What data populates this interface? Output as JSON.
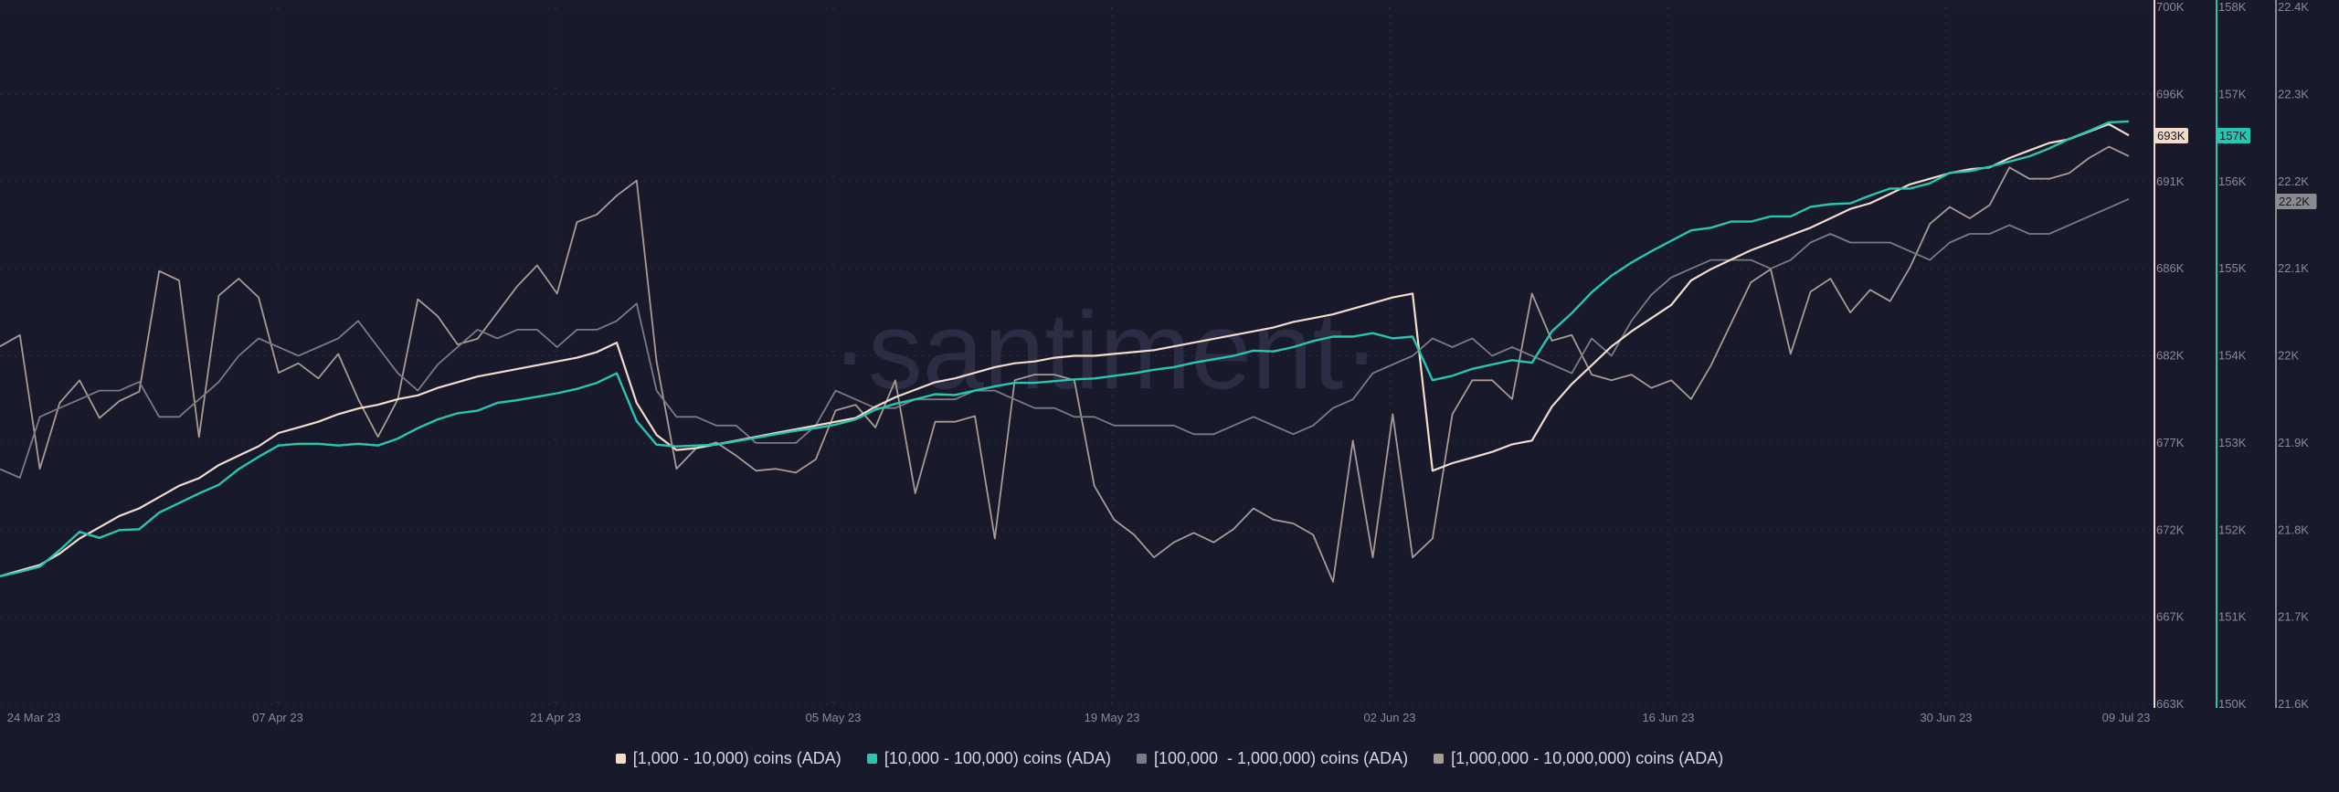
{
  "watermark": "·santiment·",
  "colors": {
    "background": "#181a2b",
    "s1": "#f4dccb",
    "s2": "#26c6b0",
    "s3": "#7b7b82",
    "s4": "#aa9a94"
  },
  "chart_data": {
    "type": "line",
    "grid": true,
    "legend_placement": "bottom-center",
    "x_labels": [
      "24 Mar 23",
      "07 Apr 23",
      "21 Apr 23",
      "05 May 23",
      "19 May 23",
      "02 Jun 23",
      "16 Jun 23",
      "30 Jun 23",
      "09 Jul 23"
    ],
    "axes": [
      {
        "id": "a1",
        "ticks": [
          "700K",
          "696K",
          "691K",
          "686K",
          "682K",
          "677K",
          "672K",
          "667K",
          "663K"
        ],
        "range": [
          663000,
          700000
        ],
        "badge": "693K",
        "badge_color": "#f4dccb"
      },
      {
        "id": "a2",
        "ticks": [
          "158K",
          "157K",
          "156K",
          "155K",
          "154K",
          "153K",
          "152K",
          "151K",
          "150K"
        ],
        "range": [
          150000,
          158000
        ],
        "badge": "157K",
        "badge_color": "#26c6b0"
      },
      {
        "id": "a3",
        "ticks": [
          "22.4K",
          "22.3K",
          "22.2K",
          "22.1K",
          "22K",
          "21.9K",
          "21.8K",
          "21.7K",
          "21.6K"
        ],
        "range": [
          21600,
          22400
        ],
        "badge": "22.2K",
        "badge_color": "#8a8a90"
      }
    ],
    "series": [
      {
        "name": "[1,000 - 10,000) coins (ADA)",
        "axis": "a1",
        "values": [
          669.8,
          670.1,
          670.4,
          671.0,
          671.8,
          672.4,
          673.0,
          673.4,
          674.0,
          674.6,
          675.0,
          675.7,
          676.2,
          676.7,
          677.4,
          677.7,
          678.0,
          678.4,
          678.7,
          678.9,
          679.2,
          679.4,
          679.8,
          680.1,
          680.4,
          680.6,
          680.8,
          681.0,
          681.2,
          681.4,
          681.7,
          682.2,
          679.0,
          677.3,
          676.5,
          676.6,
          676.8,
          677.0,
          677.2,
          677.4,
          677.6,
          677.8,
          678.0,
          678.2,
          678.8,
          679.3,
          679.7,
          680.1,
          680.3,
          680.6,
          680.9,
          681.1,
          681.2,
          681.4,
          681.5,
          681.5,
          681.6,
          681.7,
          681.8,
          682.0,
          682.2,
          682.4,
          682.6,
          682.8,
          683.0,
          683.3,
          683.5,
          683.7,
          684.0,
          684.3,
          684.6,
          684.8,
          675.4,
          675.8,
          676.1,
          676.4,
          676.8,
          677.0,
          678.8,
          680.0,
          681.0,
          682.0,
          682.8,
          683.5,
          684.2,
          685.5,
          686.1,
          686.6,
          687.1,
          687.5,
          687.9,
          688.3,
          688.8,
          689.3,
          689.6,
          690.1,
          690.6,
          690.9,
          691.2,
          691.4,
          691.5,
          692.0,
          692.4,
          692.8,
          693.0,
          693.4,
          693.8,
          693.2
        ]
      },
      {
        "name": "[10,000 - 100,000) coins (ADA)",
        "axis": "a2",
        "values": [
          151.47,
          151.52,
          151.58,
          151.77,
          151.98,
          151.91,
          152.0,
          152.01,
          152.2,
          152.31,
          152.42,
          152.52,
          152.7,
          152.84,
          152.97,
          152.99,
          152.99,
          152.97,
          152.99,
          152.97,
          153.05,
          153.17,
          153.27,
          153.34,
          153.37,
          153.46,
          153.49,
          153.53,
          153.57,
          153.62,
          153.69,
          153.8,
          153.25,
          152.98,
          152.96,
          152.97,
          152.98,
          153.02,
          153.06,
          153.1,
          153.14,
          153.17,
          153.21,
          153.27,
          153.38,
          153.45,
          153.5,
          153.56,
          153.55,
          153.6,
          153.65,
          153.69,
          153.69,
          153.71,
          153.73,
          153.74,
          153.77,
          153.8,
          153.84,
          153.87,
          153.92,
          153.96,
          154.0,
          154.06,
          154.05,
          154.1,
          154.17,
          154.22,
          154.22,
          154.26,
          154.2,
          154.22,
          153.72,
          153.77,
          153.85,
          153.9,
          153.95,
          153.92,
          154.28,
          154.49,
          154.73,
          154.92,
          155.07,
          155.2,
          155.32,
          155.44,
          155.47,
          155.54,
          155.54,
          155.6,
          155.6,
          155.71,
          155.74,
          155.75,
          155.84,
          155.92,
          155.92,
          155.98,
          156.1,
          156.12,
          156.17,
          156.23,
          156.29,
          156.38,
          156.49,
          156.58,
          156.68,
          156.69
        ]
      },
      {
        "name": "[100,000  - 1,000,000) coins (ADA)",
        "axis": "a3",
        "values": [
          21.87,
          21.86,
          21.93,
          21.94,
          21.95,
          21.96,
          21.96,
          21.97,
          21.93,
          21.93,
          21.95,
          21.97,
          22.0,
          22.02,
          22.01,
          22.0,
          22.01,
          22.02,
          22.04,
          22.01,
          21.98,
          21.96,
          21.99,
          22.01,
          22.03,
          22.02,
          22.03,
          22.03,
          22.01,
          22.03,
          22.03,
          22.04,
          22.06,
          21.96,
          21.93,
          21.93,
          21.92,
          21.92,
          21.9,
          21.9,
          21.9,
          21.92,
          21.96,
          21.95,
          21.94,
          21.94,
          21.95,
          21.95,
          21.95,
          21.96,
          21.96,
          21.95,
          21.94,
          21.94,
          21.93,
          21.93,
          21.92,
          21.92,
          21.92,
          21.92,
          21.91,
          21.91,
          21.92,
          21.93,
          21.92,
          21.91,
          21.92,
          21.94,
          21.95,
          21.98,
          21.99,
          22.0,
          22.02,
          22.01,
          22.02,
          22.0,
          22.01,
          22.0,
          21.99,
          21.98,
          22.02,
          22.0,
          22.04,
          22.07,
          22.09,
          22.1,
          22.11,
          22.11,
          22.11,
          22.1,
          22.11,
          22.13,
          22.14,
          22.13,
          22.13,
          22.13,
          22.12,
          22.11,
          22.13,
          22.14,
          22.14,
          22.15,
          22.14,
          22.14,
          22.15,
          22.16,
          22.17,
          22.18
        ]
      },
      {
        "name": "[1,000,000 - 10,000,000) coins (ADA)",
        "axis": "a1",
        "values": [
          682.0,
          682.6,
          675.5,
          679.0,
          680.2,
          678.2,
          679.1,
          679.6,
          686.0,
          685.5,
          677.2,
          684.7,
          685.6,
          684.6,
          680.6,
          681.1,
          680.3,
          681.6,
          679.2,
          677.2,
          679.2,
          684.5,
          683.6,
          682.1,
          682.4,
          683.8,
          685.2,
          686.3,
          684.8,
          688.6,
          689.0,
          690.0,
          690.8,
          681.2,
          675.5,
          676.6,
          676.9,
          676.2,
          675.4,
          675.5,
          675.3,
          676.0,
          678.6,
          678.9,
          677.7,
          680.2,
          674.2,
          678.0,
          678.0,
          678.3,
          671.8,
          680.2,
          680.5,
          680.5,
          680.2,
          674.6,
          672.8,
          672.0,
          670.8,
          671.6,
          672.1,
          671.6,
          672.3,
          673.4,
          672.8,
          672.6,
          672.0,
          669.5,
          677.0,
          670.8,
          678.4,
          670.8,
          671.8,
          678.4,
          680.2,
          680.2,
          679.2,
          684.8,
          682.3,
          682.6,
          680.5,
          680.2,
          680.5,
          679.8,
          680.2,
          679.2,
          681.0,
          683.2,
          685.4,
          686.1,
          681.6,
          684.9,
          685.6,
          683.8,
          685.0,
          684.4,
          686.2,
          688.5,
          689.4,
          688.8,
          689.5,
          691.5,
          690.9,
          690.9,
          691.2,
          692.0,
          692.6,
          692.1
        ]
      }
    ]
  },
  "legend": [
    {
      "label": "[1,000 - 10,000) coins (ADA)",
      "color": "#f4dccb"
    },
    {
      "label": "[10,000 - 100,000) coins (ADA)",
      "color": "#26c6b0"
    },
    {
      "label": "[100,000  - 1,000,000) coins (ADA)",
      "color": "#7b7b82"
    },
    {
      "label": "[1,000,000 - 10,000,000) coins (ADA)",
      "color": "#aa9a94"
    }
  ]
}
